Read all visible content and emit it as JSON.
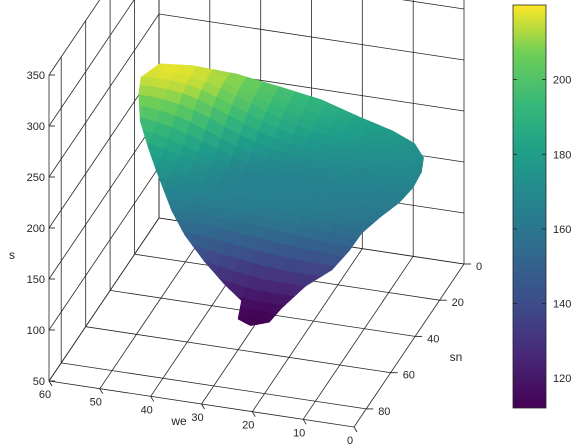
{
  "chart_data": {
    "type": "surface",
    "title": "",
    "xlabel": "we",
    "ylabel": "sn",
    "zlabel": "s",
    "x_ticks": [
      0,
      10,
      20,
      30,
      40,
      50,
      60
    ],
    "y_ticks": [
      0,
      20,
      40,
      60,
      80
    ],
    "z_ticks": [
      50,
      100,
      150,
      200,
      250,
      300,
      350
    ],
    "xlim": [
      0,
      60
    ],
    "ylim": [
      0,
      90
    ],
    "zlim": [
      50,
      350
    ],
    "colormap": "viridis",
    "colorbar": {
      "ticks": [
        120,
        140,
        160,
        180,
        200
      ],
      "range": [
        112,
        220
      ],
      "location": "right"
    },
    "surface_outline": [
      [
        58,
        8
      ],
      [
        52,
        6
      ],
      [
        44,
        3
      ],
      [
        36,
        1
      ],
      [
        28,
        0
      ],
      [
        20,
        2
      ],
      [
        13,
        4
      ],
      [
        8,
        7
      ],
      [
        5,
        12
      ],
      [
        4,
        18
      ],
      [
        4,
        25
      ],
      [
        5,
        32
      ],
      [
        7,
        39
      ],
      [
        9,
        46
      ],
      [
        10,
        52
      ],
      [
        12,
        58
      ],
      [
        16,
        63
      ],
      [
        19,
        70
      ],
      [
        20,
        76
      ],
      [
        23,
        79
      ],
      [
        26,
        77
      ],
      [
        27,
        70
      ],
      [
        31,
        67
      ],
      [
        36,
        63
      ],
      [
        41,
        58
      ],
      [
        45,
        52
      ],
      [
        48,
        46
      ],
      [
        51,
        40
      ],
      [
        54,
        34
      ],
      [
        57,
        28
      ],
      [
        59,
        21
      ],
      [
        60,
        15
      ]
    ],
    "surface_values": {
      "note_free": true,
      "high_corner": [
        55,
        10,
        218
      ],
      "mid": [
        30,
        35,
        165
      ],
      "low_corner": [
        22,
        78,
        112
      ]
    }
  }
}
